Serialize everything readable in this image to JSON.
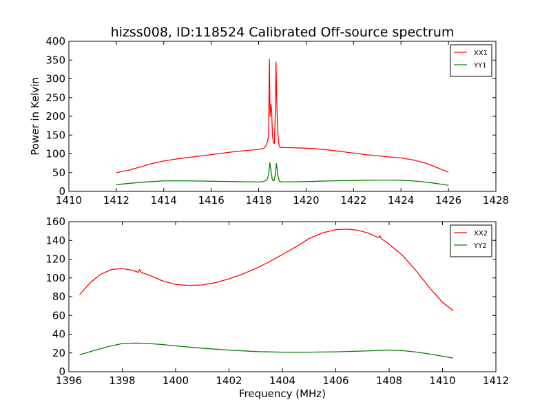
{
  "figure": {
    "title": "hizss008, ID:118524 Calibrated Off-source spectrum"
  },
  "chart_data": [
    {
      "type": "line",
      "title": "hizss008, ID:118524 Calibrated Off-source spectrum",
      "xlabel": "",
      "ylabel": "Power in Kelvin",
      "xlim": [
        1410,
        1428
      ],
      "ylim": [
        0,
        400
      ],
      "xticks": [
        1410,
        1412,
        1414,
        1416,
        1418,
        1420,
        1422,
        1424,
        1426,
        1428
      ],
      "yticks": [
        0,
        50,
        100,
        150,
        200,
        250,
        300,
        350,
        400
      ],
      "grid": false,
      "legend": "top-right",
      "series": [
        {
          "name": "XX1",
          "color": "#ff0000",
          "x": [
            1412.0,
            1412.5,
            1413.0,
            1413.5,
            1414.0,
            1414.5,
            1415.0,
            1415.5,
            1416.0,
            1416.5,
            1417.0,
            1417.5,
            1418.0,
            1418.2,
            1418.3,
            1418.38,
            1418.42,
            1418.45,
            1418.48,
            1418.52,
            1418.55,
            1418.58,
            1418.62,
            1418.66,
            1418.7,
            1418.73,
            1418.76,
            1418.8,
            1418.85,
            1418.9,
            1419.0,
            1419.5,
            1420.0,
            1420.5,
            1421.0,
            1421.5,
            1422.0,
            1422.5,
            1423.0,
            1423.5,
            1424.0,
            1424.5,
            1425.0,
            1425.5,
            1426.0
          ],
          "y": [
            50,
            56,
            65,
            74,
            81,
            86,
            90,
            94,
            98,
            102,
            106,
            109,
            112,
            114,
            120,
            135,
            150,
            352,
            200,
            232,
            210,
            150,
            130,
            128,
            200,
            345,
            250,
            165,
            125,
            117,
            117,
            116,
            115,
            113,
            110,
            106,
            102,
            98,
            95,
            92,
            89,
            84,
            76,
            64,
            51
          ]
        },
        {
          "name": "YY1",
          "color": "#008000",
          "x": [
            1412.0,
            1412.5,
            1413.0,
            1413.5,
            1414.0,
            1414.5,
            1415.0,
            1415.5,
            1416.0,
            1416.5,
            1417.0,
            1417.5,
            1418.0,
            1418.2,
            1418.35,
            1418.42,
            1418.47,
            1418.52,
            1418.58,
            1418.65,
            1418.7,
            1418.75,
            1418.8,
            1418.87,
            1418.95,
            1419.5,
            1420.0,
            1420.5,
            1421.0,
            1421.5,
            1422.0,
            1422.5,
            1423.0,
            1423.5,
            1424.0,
            1424.5,
            1425.0,
            1425.5,
            1426.0
          ],
          "y": [
            18,
            21,
            24,
            26,
            28,
            28,
            28,
            27.5,
            27,
            26.5,
            26,
            25.5,
            25,
            26,
            30,
            45,
            76,
            55,
            30,
            28,
            45,
            74,
            45,
            27,
            25,
            25.5,
            26,
            27,
            28,
            28.5,
            29,
            29.5,
            30,
            30,
            29.5,
            28,
            25,
            21,
            16
          ]
        }
      ]
    },
    {
      "type": "line",
      "title": "",
      "xlabel": "Frequency (MHz)",
      "ylabel": "",
      "xlim": [
        1396,
        1412
      ],
      "ylim": [
        0,
        160
      ],
      "xticks": [
        1396,
        1398,
        1400,
        1402,
        1404,
        1406,
        1408,
        1410,
        1412
      ],
      "yticks": [
        0,
        20,
        40,
        60,
        80,
        100,
        120,
        140,
        160
      ],
      "grid": false,
      "legend": "top-right",
      "series": [
        {
          "name": "XX2",
          "color": "#ff0000",
          "x": [
            1396.4,
            1396.8,
            1397.2,
            1397.6,
            1398.0,
            1398.4,
            1398.6,
            1398.65,
            1398.7,
            1399.0,
            1399.5,
            1400.0,
            1400.5,
            1401.0,
            1401.5,
            1402.0,
            1402.5,
            1403.0,
            1403.5,
            1404.0,
            1404.5,
            1405.0,
            1405.5,
            1406.0,
            1406.4,
            1406.8,
            1407.2,
            1407.6,
            1407.65,
            1407.7,
            1408.0,
            1408.5,
            1409.0,
            1409.5,
            1410.0,
            1410.4
          ],
          "y": [
            82,
            95,
            104,
            109,
            110,
            108,
            106,
            109,
            106,
            103,
            97,
            93,
            92,
            92.5,
            95,
            99,
            104,
            110,
            117,
            125,
            133,
            142,
            148,
            151.5,
            152,
            151,
            148,
            143,
            145,
            142,
            136,
            124,
            108,
            90,
            74,
            65
          ]
        },
        {
          "name": "YY2",
          "color": "#008000",
          "x": [
            1396.4,
            1397.0,
            1397.5,
            1398.0,
            1398.5,
            1399.0,
            1399.5,
            1400.0,
            1401.0,
            1402.0,
            1403.0,
            1404.0,
            1405.0,
            1406.0,
            1407.0,
            1407.5,
            1408.0,
            1408.5,
            1409.0,
            1409.5,
            1410.0,
            1410.4
          ],
          "y": [
            18,
            23,
            27,
            30,
            30.5,
            30,
            29,
            27.5,
            25,
            23,
            21.5,
            20.8,
            20.8,
            21.2,
            22,
            22.5,
            23,
            22.5,
            21,
            19,
            16.5,
            14.5
          ]
        }
      ]
    }
  ]
}
